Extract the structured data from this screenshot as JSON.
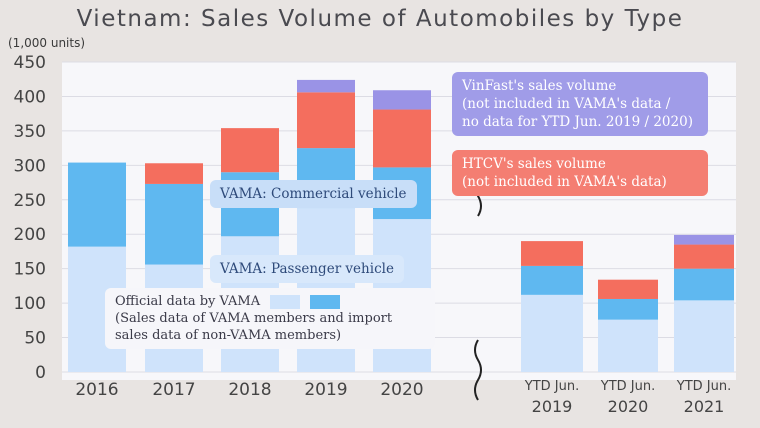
{
  "chart_data": {
    "type": "bar",
    "stacked": true,
    "title": "Vietnam: Sales Volume of Automobiles by Type",
    "unit_label": "(1,000 units)",
    "ylim": [
      0,
      450
    ],
    "yticks": [
      "0",
      "50",
      "100",
      "150",
      "200",
      "250",
      "300",
      "350",
      "400",
      "450"
    ],
    "categories": [
      "2016",
      "2017",
      "2018",
      "2019",
      "2020",
      "YTD Jun.\n2019",
      "YTD Jun.\n2020",
      "YTD Jun.\n2021"
    ],
    "series": [
      {
        "name": "VAMA: Passenger vehicle",
        "color": "#cfe3fb",
        "values": [
          182,
          156,
          197,
          238,
          222,
          112,
          76,
          104
        ]
      },
      {
        "name": "VAMA: Commercial vehicle",
        "color": "#5fb8f0",
        "values": [
          122,
          117,
          93,
          87,
          75,
          42,
          30,
          46
        ]
      },
      {
        "name": "HTCV's sales volume",
        "color": "#f46e5e",
        "values": [
          0,
          30,
          64,
          81,
          84,
          36,
          28,
          35
        ]
      },
      {
        "name": "VinFast's sales volume",
        "color": "#9a93e6",
        "values": [
          0,
          0,
          0,
          18,
          28,
          0,
          0,
          14
        ]
      }
    ]
  },
  "annotations": {
    "vinfast": "VinFast's sales volume\n(not included in VAMA's data /\nno data for YTD Jun. 2019 / 2020)",
    "htcv": "HTCV's sales volume\n(not  included in VAMA's data)",
    "commercial": "VAMA: Commercial vehicle",
    "passenger": "VAMA: Passenger vehicle",
    "official": "Official data by VAMA",
    "official_note": "(Sales data of VAMA members and import\nsales data of non-VAMA members)"
  },
  "colors": {
    "background": "#e8e4e2",
    "panel": "#f7f7fa",
    "axis_text": "#444444"
  }
}
